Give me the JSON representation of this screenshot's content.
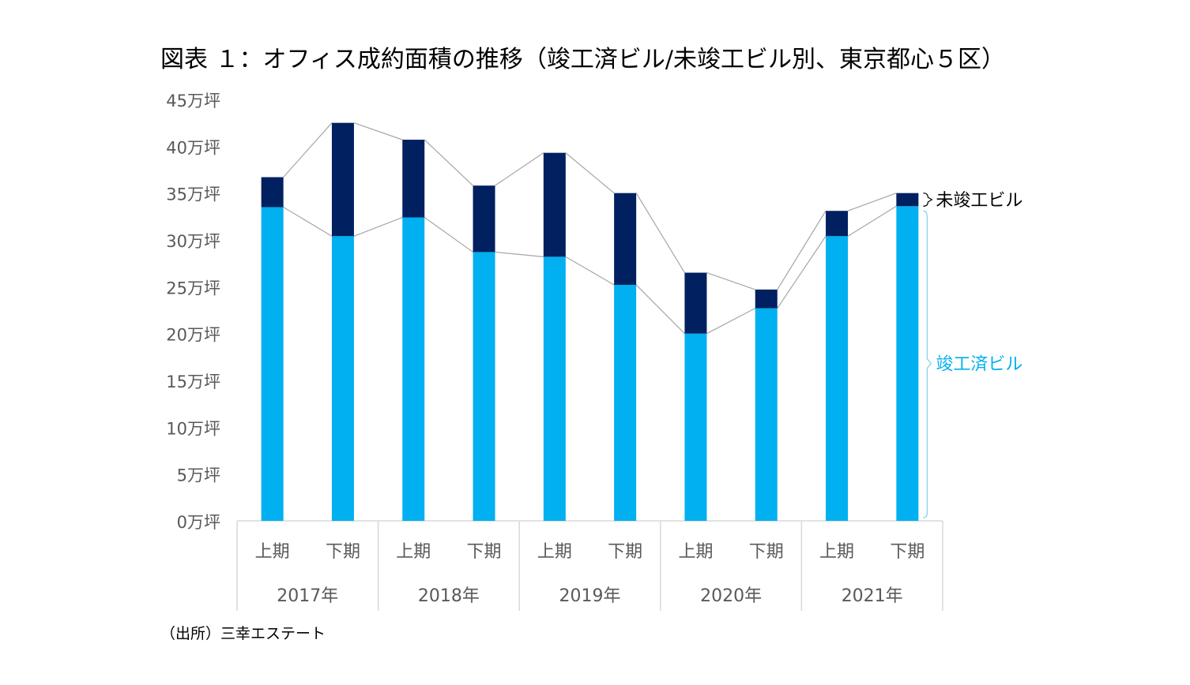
{
  "title": "図表 １：オフィス成約面積の推移（竣工済ビル/未竣工ビル別、東京都心５区）",
  "source": "（出所）三幸エステート",
  "colors": {
    "completed": "#00B0F0",
    "uncompleted": "#002060",
    "connector": "#A6A6A6",
    "axis_text": "#595959",
    "axis_line": "#D9D9D9"
  },
  "chart_data": {
    "type": "bar",
    "stacked": true,
    "title": "図表 １：オフィス成約面積の推移（竣工済ビル/未竣工ビル別、東京都心５区）",
    "unit": "万坪",
    "y_ticks": [
      "0万坪",
      "5万坪",
      "10万坪",
      "15万坪",
      "20万坪",
      "25万坪",
      "30万坪",
      "35万坪",
      "40万坪",
      "45万坪"
    ],
    "ylim": [
      0,
      45
    ],
    "categories": [
      "上期",
      "下期",
      "上期",
      "下期",
      "上期",
      "下期",
      "上期",
      "下期",
      "上期",
      "下期"
    ],
    "groups": [
      "2017年",
      "2018年",
      "2019年",
      "2020年",
      "2021年"
    ],
    "series": [
      {
        "name": "竣工済ビル",
        "values": [
          33.5,
          30.4,
          32.4,
          28.7,
          28.2,
          25.2,
          20.0,
          22.7,
          30.4,
          33.6
        ]
      },
      {
        "name": "未竣工ビル",
        "values": [
          3.2,
          12.1,
          8.3,
          7.1,
          11.1,
          9.8,
          6.5,
          2.0,
          2.7,
          1.4
        ]
      }
    ],
    "legend_labels": {
      "uncompleted": "未竣工ビル",
      "completed": "竣工済ビル"
    },
    "legend_placement": "right"
  }
}
